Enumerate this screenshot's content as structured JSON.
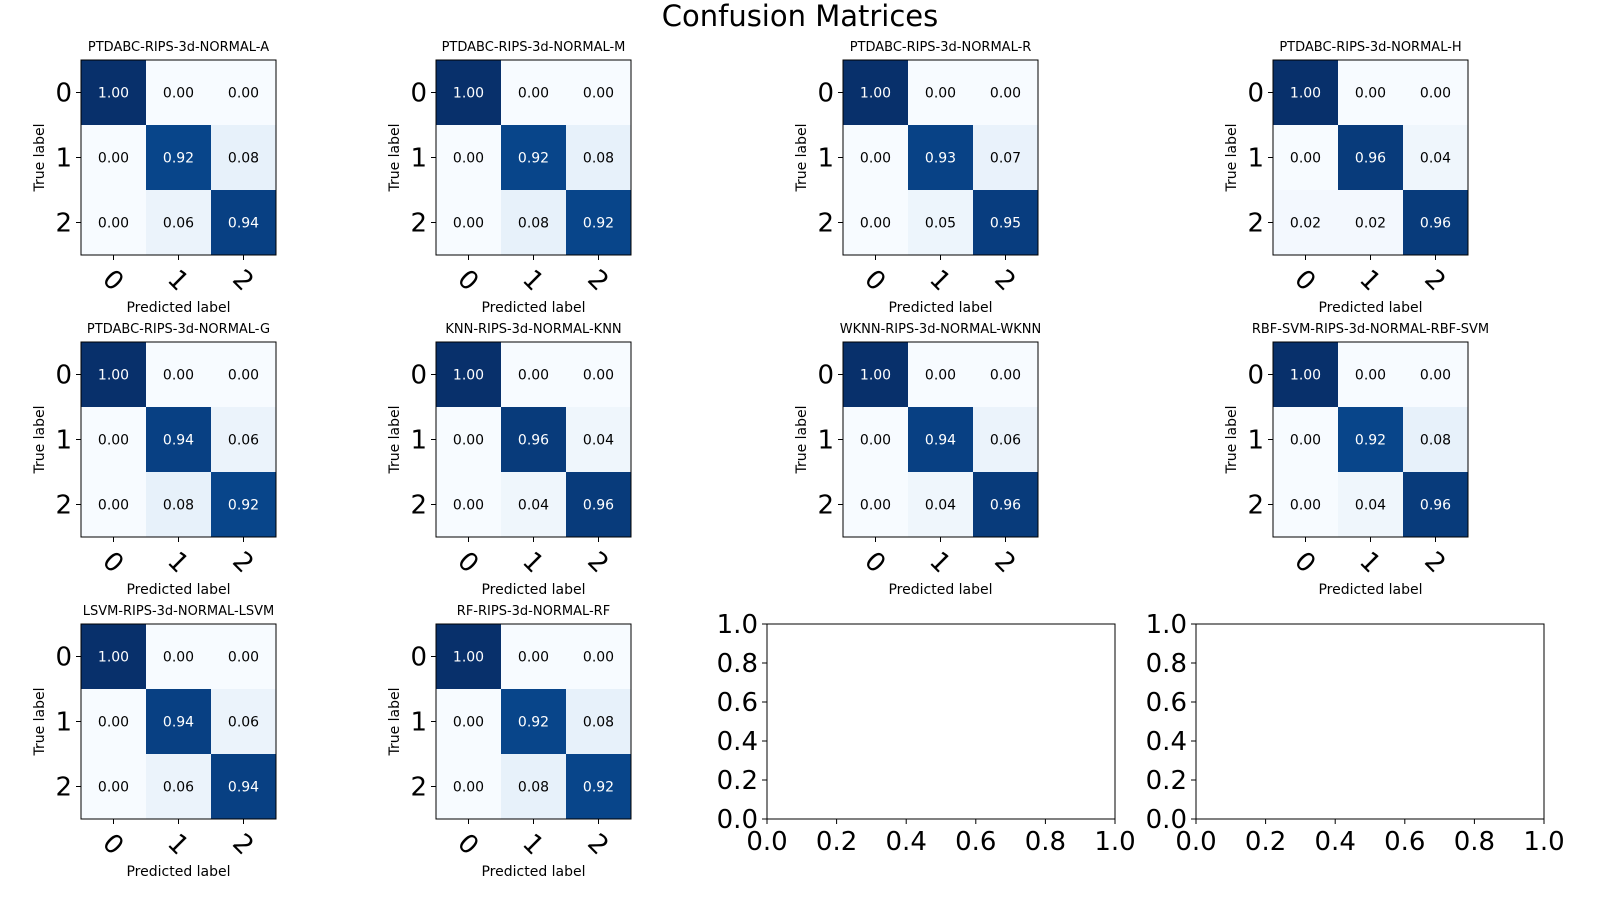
{
  "figure": {
    "title": "Confusion Matrices"
  },
  "chart_data": [
    {
      "type": "heatmap",
      "title": "PTDABC-RIPS-3d-NORMAL-A",
      "xlabel": "Predicted label",
      "ylabel": "True label",
      "x_ticks": [
        "0",
        "1",
        "2"
      ],
      "y_ticks": [
        "0",
        "1",
        "2"
      ],
      "values": [
        [
          1.0,
          0.0,
          0.0
        ],
        [
          0.0,
          0.92,
          0.08
        ],
        [
          0.0,
          0.06,
          0.94
        ]
      ],
      "colormap": "Blues"
    },
    {
      "type": "heatmap",
      "title": "PTDABC-RIPS-3d-NORMAL-M",
      "xlabel": "Predicted label",
      "ylabel": "True label",
      "x_ticks": [
        "0",
        "1",
        "2"
      ],
      "y_ticks": [
        "0",
        "1",
        "2"
      ],
      "values": [
        [
          1.0,
          0.0,
          0.0
        ],
        [
          0.0,
          0.92,
          0.08
        ],
        [
          0.0,
          0.08,
          0.92
        ]
      ],
      "colormap": "Blues"
    },
    {
      "type": "heatmap",
      "title": "PTDABC-RIPS-3d-NORMAL-R",
      "xlabel": "Predicted label",
      "ylabel": "True label",
      "x_ticks": [
        "0",
        "1",
        "2"
      ],
      "y_ticks": [
        "0",
        "1",
        "2"
      ],
      "values": [
        [
          1.0,
          0.0,
          0.0
        ],
        [
          0.0,
          0.93,
          0.07
        ],
        [
          0.0,
          0.05,
          0.95
        ]
      ],
      "colormap": "Blues"
    },
    {
      "type": "heatmap",
      "title": "PTDABC-RIPS-3d-NORMAL-H",
      "xlabel": "Predicted label",
      "ylabel": "True label",
      "x_ticks": [
        "0",
        "1",
        "2"
      ],
      "y_ticks": [
        "0",
        "1",
        "2"
      ],
      "values": [
        [
          1.0,
          0.0,
          0.0
        ],
        [
          0.0,
          0.96,
          0.04
        ],
        [
          0.02,
          0.02,
          0.96
        ]
      ],
      "colormap": "Blues"
    },
    {
      "type": "heatmap",
      "title": "PTDABC-RIPS-3d-NORMAL-G",
      "xlabel": "Predicted label",
      "ylabel": "True label",
      "x_ticks": [
        "0",
        "1",
        "2"
      ],
      "y_ticks": [
        "0",
        "1",
        "2"
      ],
      "values": [
        [
          1.0,
          0.0,
          0.0
        ],
        [
          0.0,
          0.94,
          0.06
        ],
        [
          0.0,
          0.08,
          0.92
        ]
      ],
      "colormap": "Blues"
    },
    {
      "type": "heatmap",
      "title": "KNN-RIPS-3d-NORMAL-KNN",
      "xlabel": "Predicted label",
      "ylabel": "True label",
      "x_ticks": [
        "0",
        "1",
        "2"
      ],
      "y_ticks": [
        "0",
        "1",
        "2"
      ],
      "values": [
        [
          1.0,
          0.0,
          0.0
        ],
        [
          0.0,
          0.96,
          0.04
        ],
        [
          0.0,
          0.04,
          0.96
        ]
      ],
      "colormap": "Blues"
    },
    {
      "type": "heatmap",
      "title": "WKNN-RIPS-3d-NORMAL-WKNN",
      "xlabel": "Predicted label",
      "ylabel": "True label",
      "x_ticks": [
        "0",
        "1",
        "2"
      ],
      "y_ticks": [
        "0",
        "1",
        "2"
      ],
      "values": [
        [
          1.0,
          0.0,
          0.0
        ],
        [
          0.0,
          0.94,
          0.06
        ],
        [
          0.0,
          0.04,
          0.96
        ]
      ],
      "colormap": "Blues"
    },
    {
      "type": "heatmap",
      "title": "RBF-SVM-RIPS-3d-NORMAL-RBF-SVM",
      "xlabel": "Predicted label",
      "ylabel": "True label",
      "x_ticks": [
        "0",
        "1",
        "2"
      ],
      "y_ticks": [
        "0",
        "1",
        "2"
      ],
      "values": [
        [
          1.0,
          0.0,
          0.0
        ],
        [
          0.0,
          0.92,
          0.08
        ],
        [
          0.0,
          0.04,
          0.96
        ]
      ],
      "colormap": "Blues"
    },
    {
      "type": "heatmap",
      "title": "LSVM-RIPS-3d-NORMAL-LSVM",
      "xlabel": "Predicted label",
      "ylabel": "True label",
      "x_ticks": [
        "0",
        "1",
        "2"
      ],
      "y_ticks": [
        "0",
        "1",
        "2"
      ],
      "values": [
        [
          1.0,
          0.0,
          0.0
        ],
        [
          0.0,
          0.94,
          0.06
        ],
        [
          0.0,
          0.06,
          0.94
        ]
      ],
      "colormap": "Blues"
    },
    {
      "type": "heatmap",
      "title": "RF-RIPS-3d-NORMAL-RF",
      "xlabel": "Predicted label",
      "ylabel": "True label",
      "x_ticks": [
        "0",
        "1",
        "2"
      ],
      "y_ticks": [
        "0",
        "1",
        "2"
      ],
      "values": [
        [
          1.0,
          0.0,
          0.0
        ],
        [
          0.0,
          0.92,
          0.08
        ],
        [
          0.0,
          0.08,
          0.92
        ]
      ],
      "colormap": "Blues"
    },
    {
      "type": "scatter",
      "title": "",
      "xlabel": "",
      "ylabel": "",
      "xlim": [
        0.0,
        1.0
      ],
      "ylim": [
        0.0,
        1.0
      ],
      "x_ticks": [
        "0.0",
        "0.2",
        "0.4",
        "0.6",
        "0.8",
        "1.0"
      ],
      "y_ticks": [
        "0.0",
        "0.2",
        "0.4",
        "0.6",
        "0.8",
        "1.0"
      ],
      "series": []
    },
    {
      "type": "scatter",
      "title": "",
      "xlabel": "",
      "ylabel": "",
      "xlim": [
        0.0,
        1.0
      ],
      "ylim": [
        0.0,
        1.0
      ],
      "x_ticks": [
        "0.0",
        "0.2",
        "0.4",
        "0.6",
        "0.8",
        "1.0"
      ],
      "y_ticks": [
        "0.0",
        "0.2",
        "0.4",
        "0.6",
        "0.8",
        "1.0"
      ],
      "series": []
    }
  ]
}
